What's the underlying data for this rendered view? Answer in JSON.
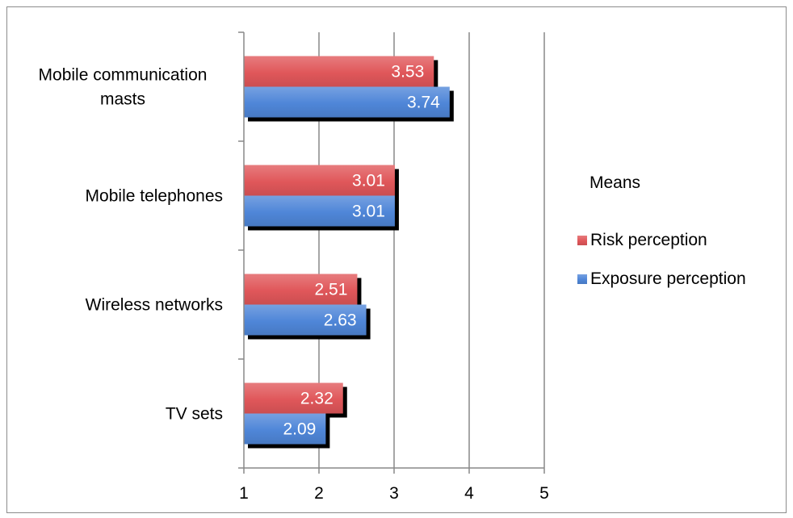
{
  "chart_data": {
    "type": "bar",
    "orientation": "horizontal",
    "title": "",
    "xlabel": "",
    "ylabel": "",
    "xlim": [
      1,
      5
    ],
    "x_ticks": [
      "1",
      "2",
      "3",
      "4",
      "5"
    ],
    "grid": true,
    "legend_title": "Means",
    "legend_position": "right",
    "categories": [
      [
        "Mobile communication",
        "masts"
      ],
      [
        "Mobile telephones"
      ],
      [
        "Wireless networks"
      ],
      [
        "TV sets"
      ]
    ],
    "series": [
      {
        "name": "Risk perception",
        "color": "#e0575a",
        "values": [
          3.53,
          3.01,
          2.51,
          2.32
        ],
        "labels": [
          "3.53",
          "3.01",
          "2.51",
          "2.32"
        ]
      },
      {
        "name": "Exposure perception",
        "color": "#4f86d8",
        "values": [
          3.74,
          3.01,
          2.63,
          2.09
        ],
        "labels": [
          "3.74",
          "3.01",
          "2.63",
          "2.09"
        ]
      }
    ]
  }
}
